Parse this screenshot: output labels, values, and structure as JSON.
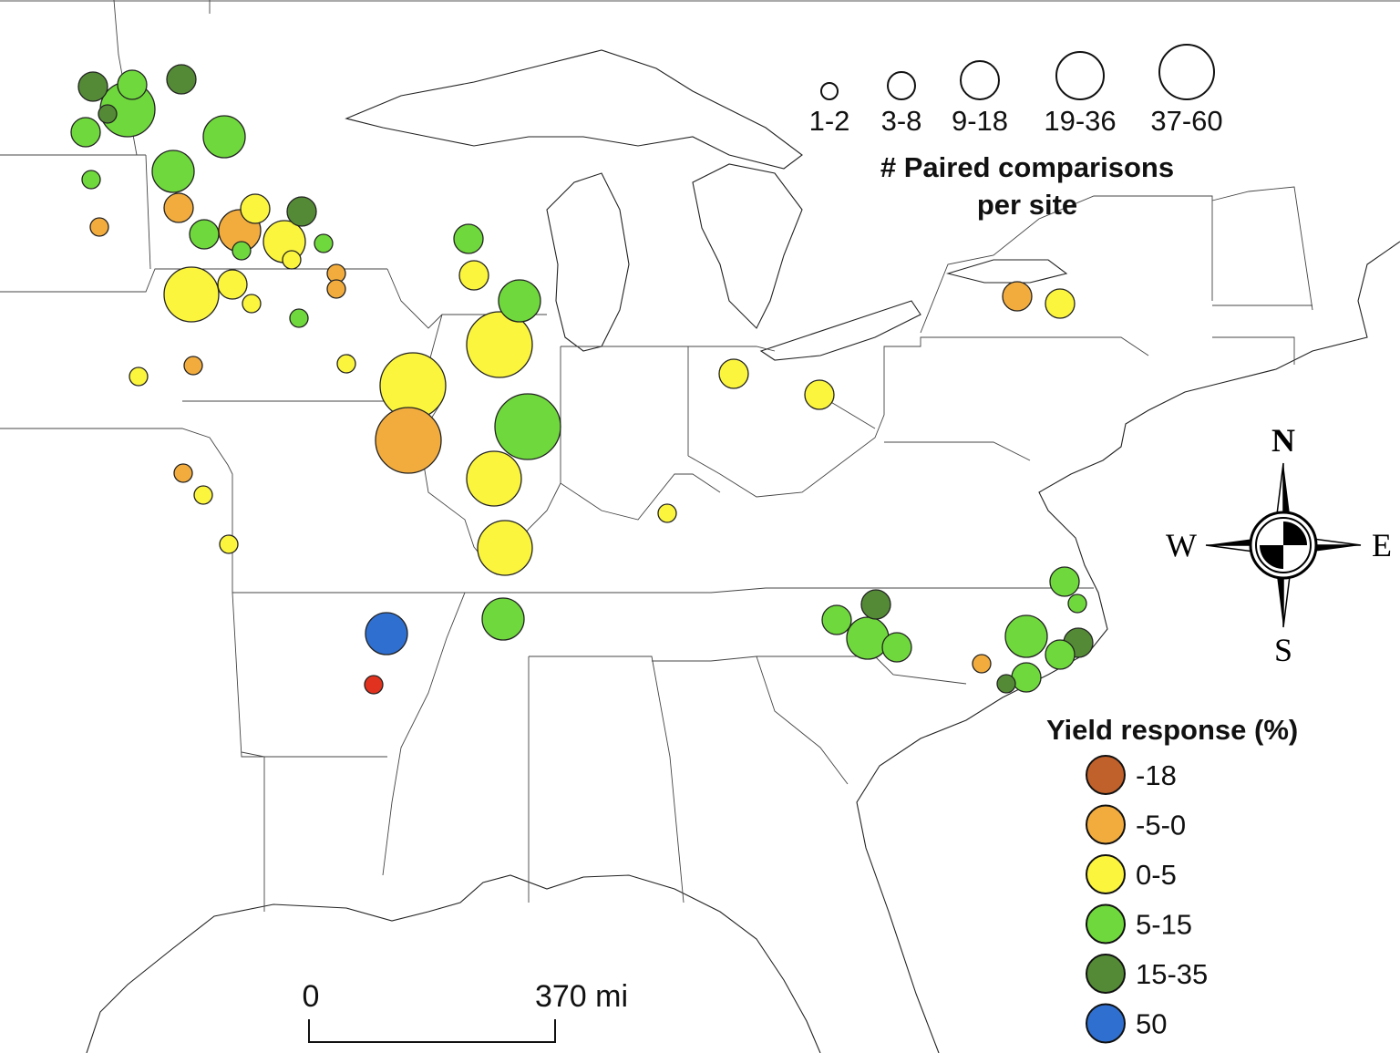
{
  "size_legend": {
    "title_line1": "# Paired comparisons",
    "title_line2": "per site",
    "classes": [
      "1-2",
      "3-8",
      "9-18",
      "19-36",
      "37-60"
    ]
  },
  "yield_legend": {
    "title": "Yield response (%)",
    "classes": [
      {
        "label": "-18",
        "color": "#c0602a"
      },
      {
        "label": "-5-0",
        "color": "#f2ac3e"
      },
      {
        "label": "0-5",
        "color": "#fbf53e"
      },
      {
        "label": "5-15",
        "color": "#6fd83c"
      },
      {
        "label": "15-35",
        "color": "#548a36"
      },
      {
        "label": "50",
        "color": "#2f6fd0"
      }
    ]
  },
  "compass": {
    "n": "N",
    "s": "S",
    "e": "E",
    "w": "W"
  },
  "scale_bar": {
    "start": "0",
    "end": "370 mi"
  },
  "sites": [
    {
      "yield": 4,
      "size": 1
    },
    {
      "yield": 3,
      "size": 1
    },
    {
      "yield": 3,
      "size": 3
    },
    {
      "yield": 4,
      "size": 0
    },
    {
      "yield": 3,
      "size": 1
    },
    {
      "yield": 4,
      "size": 1
    },
    {
      "yield": 3,
      "size": 2
    },
    {
      "yield": 3,
      "size": 0
    },
    {
      "yield": 3,
      "size": 2
    },
    {
      "yield": 1,
      "size": 1
    },
    {
      "yield": 1,
      "size": 0
    },
    {
      "yield": 2,
      "size": 1
    },
    {
      "yield": 4,
      "size": 1
    },
    {
      "yield": 3,
      "size": 1
    },
    {
      "yield": 3,
      "size": 0
    },
    {
      "yield": 1,
      "size": 2
    },
    {
      "yield": 2,
      "size": 2
    },
    {
      "yield": 3,
      "size": 0
    },
    {
      "yield": 2,
      "size": 0
    },
    {
      "yield": 1,
      "size": 0
    },
    {
      "yield": 1,
      "size": 0
    },
    {
      "yield": 2,
      "size": 3
    },
    {
      "yield": 2,
      "size": 1
    },
    {
      "yield": 2,
      "size": 0
    },
    {
      "yield": 3,
      "size": 0
    },
    {
      "yield": 2,
      "size": 0
    },
    {
      "yield": 1,
      "size": 0
    },
    {
      "yield": 2,
      "size": 0
    },
    {
      "yield": 3,
      "size": 1
    },
    {
      "yield": 2,
      "size": 1
    },
    {
      "yield": 3,
      "size": 2
    },
    {
      "yield": 2,
      "size": 4
    },
    {
      "yield": 2,
      "size": 4
    },
    {
      "yield": 1,
      "size": 4
    },
    {
      "yield": 3,
      "size": 4
    },
    {
      "yield": 2,
      "size": 3
    },
    {
      "yield": 2,
      "size": 3
    },
    {
      "yield": 1,
      "size": 0
    },
    {
      "yield": 2,
      "size": 0
    },
    {
      "yield": 2,
      "size": 0
    },
    {
      "yield": 3,
      "size": 2
    },
    {
      "yield": 5,
      "size": 2
    },
    {
      "yield": 0,
      "size": 0
    },
    {
      "yield": 2,
      "size": 0
    },
    {
      "yield": 2,
      "size": 1
    },
    {
      "yield": 2,
      "size": 1
    },
    {
      "yield": 1,
      "size": 1
    },
    {
      "yield": 2,
      "size": 1
    },
    {
      "yield": 3,
      "size": 1
    },
    {
      "yield": 4,
      "size": 1
    },
    {
      "yield": 3,
      "size": 2
    },
    {
      "yield": 3,
      "size": 1
    },
    {
      "yield": 1,
      "size": 0
    },
    {
      "yield": 3,
      "size": 2
    },
    {
      "yield": 3,
      "size": 1
    },
    {
      "yield": 3,
      "size": 0
    },
    {
      "yield": 4,
      "size": 1
    },
    {
      "yield": 3,
      "size": 1
    },
    {
      "yield": 3,
      "size": 1
    },
    {
      "yield": 4,
      "size": 0
    }
  ]
}
